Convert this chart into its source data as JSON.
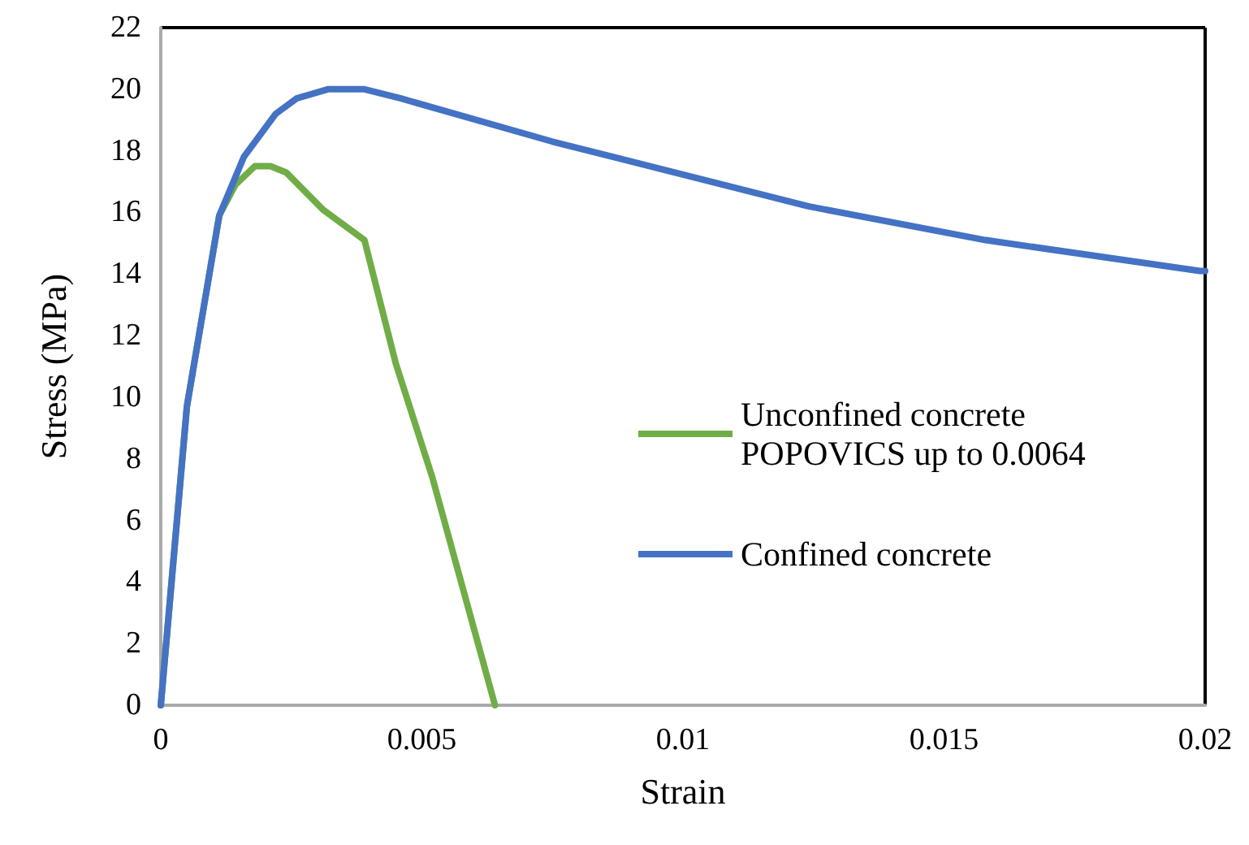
{
  "chart_data": {
    "type": "line",
    "xlabel": "Strain",
    "ylabel": "Stress (MPa)",
    "xlim": [
      0,
      0.02
    ],
    "xticks": [
      0,
      0.005,
      0.01,
      0.015,
      0.02
    ],
    "ylim": [
      0,
      22
    ],
    "yticks": [
      0,
      2,
      4,
      6,
      8,
      10,
      12,
      14,
      16,
      18,
      20,
      22
    ],
    "grid": false,
    "legend": "right",
    "marker": "none",
    "line_style": "solid",
    "series": [
      {
        "name": "Unconfined concrete\nPOPOVICS up to 0.0064",
        "color": "#70ad47",
        "x": [
          0,
          0.0005,
          0.00112,
          0.00143,
          0.0018,
          0.0021,
          0.0024,
          0.0031,
          0.0039,
          0.0045,
          0.0052,
          0.0064
        ],
        "values": [
          0,
          9.7,
          15.9,
          16.9,
          17.5,
          17.5,
          17.3,
          16.1,
          15.1,
          11.1,
          7.4,
          0
        ]
      },
      {
        "name": "Confined concrete",
        "color": "#4472c4",
        "x": [
          0,
          0.0005,
          0.00112,
          0.00159,
          0.0022,
          0.0026,
          0.0032,
          0.0039,
          0.0046,
          0.0075,
          0.0096,
          0.0124,
          0.0158,
          0.0199,
          0.02
        ],
        "values": [
          0,
          9.7,
          15.9,
          17.8,
          19.2,
          19.7,
          20,
          20,
          19.7,
          18.3,
          17.4,
          16.2,
          15.1,
          14.1,
          14.1
        ]
      }
    ]
  }
}
